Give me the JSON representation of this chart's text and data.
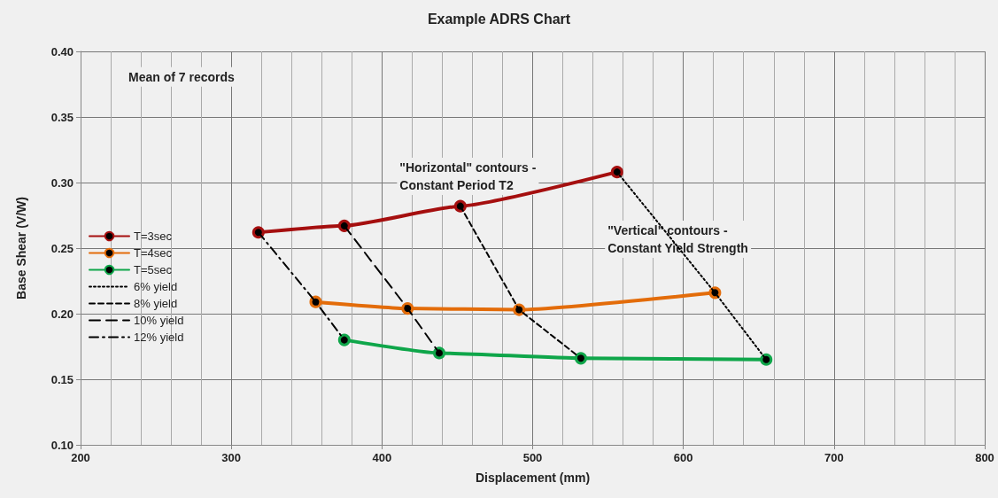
{
  "chart_data": {
    "type": "line",
    "title": "Example ADRS Chart",
    "xlabel": "Displacement (mm)",
    "ylabel": "Base Shear (V/W)",
    "xlim": [
      200,
      800
    ],
    "xticks": [
      200,
      300,
      400,
      500,
      600,
      700,
      800
    ],
    "ylim": [
      0.1,
      0.4
    ],
    "yticks": [
      {
        "value": 0.1,
        "label": "0.10"
      },
      0.15,
      {
        "value": 0.2,
        "label": "0.20"
      },
      0.25,
      {
        "value": 0.3,
        "label": "0.30"
      },
      0.35,
      {
        "value": 0.4,
        "label": "0.40"
      }
    ],
    "grid": true,
    "legend": "left",
    "marker": "circle",
    "annotations": [
      "Mean of 7 records",
      "\"Horizontal\" contours -\nConstant Period T2",
      "\"Vertical\" contours -\nConstant Yield Strength"
    ],
    "series": [
      {
        "name": "T=3sec",
        "color": "#a50f0f",
        "x": [
          318,
          375,
          452,
          556
        ],
        "values": [
          0.262,
          0.267,
          0.282,
          0.308
        ]
      },
      {
        "name": "T=4sec",
        "color": "#e36c0a",
        "x": [
          356,
          417,
          491,
          621
        ],
        "values": [
          0.209,
          0.204,
          0.203,
          0.216
        ]
      },
      {
        "name": "T=5sec",
        "color": "#0fa64a",
        "x": [
          375,
          438,
          532,
          655
        ],
        "values": [
          0.18,
          0.17,
          0.166,
          0.165
        ]
      },
      {
        "name": "6% yield",
        "color": "#000000",
        "marker": "none",
        "line_style": "dotted",
        "x": [
          556,
          621,
          655
        ],
        "values": [
          0.308,
          0.216,
          0.165
        ]
      },
      {
        "name": "8% yield",
        "color": "#000000",
        "marker": "none",
        "line_style": "dashed",
        "x": [
          452,
          491,
          532
        ],
        "values": [
          0.282,
          0.203,
          0.166
        ]
      },
      {
        "name": "10% yield",
        "color": "#000000",
        "marker": "none",
        "line_style": "longdash",
        "x": [
          375,
          417,
          438
        ],
        "values": [
          0.267,
          0.204,
          0.17
        ]
      },
      {
        "name": "12% yield",
        "color": "#000000",
        "marker": "none",
        "line_style": "dashdot",
        "x": [
          318,
          356,
          375
        ],
        "values": [
          0.262,
          0.209,
          0.18
        ]
      }
    ]
  }
}
